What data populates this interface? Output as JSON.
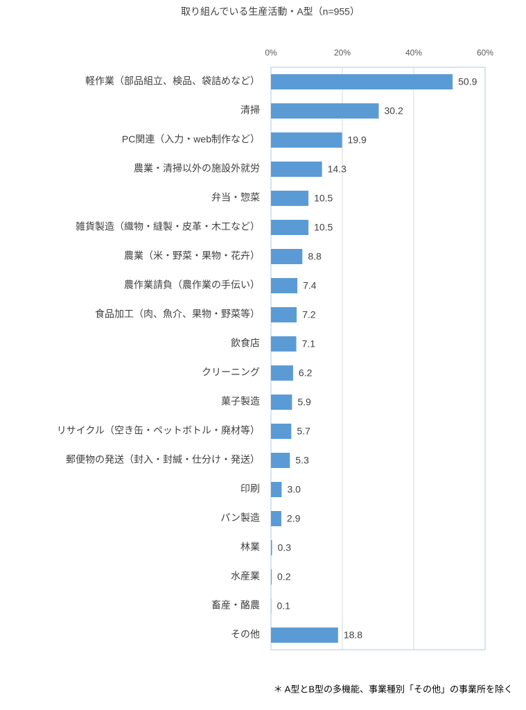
{
  "chart_data": {
    "type": "bar",
    "orientation": "horizontal",
    "title": "取り組んでいる生産活動・A型（n=955）",
    "categories": [
      "軽作業（部品組立、検品、袋詰めなど）",
      "清掃",
      "PC関連（入力・web制作など）",
      "農業・清掃以外の施設外就労",
      "弁当・惣菜",
      "雑貨製造（織物・縫製・皮革・木工など）",
      "農業（米・野菜・果物・花卉）",
      "農作業請負（農作業の手伝い）",
      "食品加工（肉、魚介、果物・野菜等）",
      "飲食店",
      "クリーニング",
      "菓子製造",
      "リサイクル（空き缶・ペットボトル・廃材等）",
      "郵便物の発送（封入・封緘・仕分け・発送）",
      "印刷",
      "パン製造",
      "林業",
      "水産業",
      "畜産・酪農",
      "その他"
    ],
    "values": [
      50.9,
      30.2,
      19.9,
      14.3,
      10.5,
      10.5,
      8.8,
      7.4,
      7.2,
      7.1,
      6.2,
      5.9,
      5.7,
      5.3,
      3.0,
      2.9,
      0.3,
      0.2,
      0.1,
      18.8
    ],
    "value_labels": [
      "50.9",
      "30.2",
      "19.9",
      "14.3",
      "10.5",
      "10.5",
      "8.8",
      "7.4",
      "7.2",
      "7.1",
      "6.2",
      "5.9",
      "5.7",
      "5.3",
      "3.0",
      "2.9",
      "0.3",
      "0.2",
      "0.1",
      "18.8"
    ],
    "color": "#5b9bd5",
    "xlim": [
      0,
      60
    ],
    "xticks": [
      {
        "value": 0,
        "label": "0%"
      },
      {
        "value": 20,
        "label": "20%"
      },
      {
        "value": 40,
        "label": "40%"
      },
      {
        "value": 60,
        "label": "60%"
      }
    ],
    "grid": true,
    "note": "＊ A型とB型の多機能、事業種別「その他」の事業所を除く"
  }
}
